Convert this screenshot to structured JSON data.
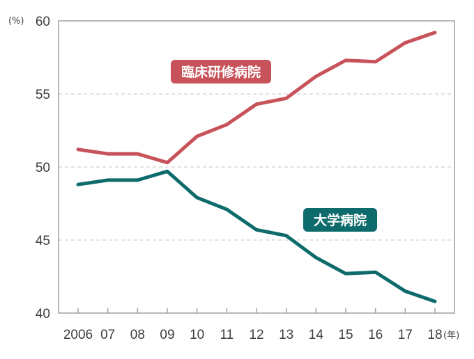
{
  "chart_data": {
    "type": "line",
    "title": "",
    "y_unit": "(%)",
    "x_unit": "(年)",
    "categories": [
      "2006",
      "07",
      "08",
      "09",
      "10",
      "11",
      "12",
      "13",
      "14",
      "15",
      "16",
      "17",
      "18"
    ],
    "series": [
      {
        "name": "臨床研修病院",
        "color": "#c8525a",
        "values": [
          51.2,
          50.9,
          50.9,
          50.3,
          52.1,
          52.9,
          54.3,
          54.7,
          56.2,
          57.3,
          57.2,
          58.5,
          59.2
        ]
      },
      {
        "name": "大学病院",
        "color": "#0e6b6b",
        "values": [
          48.8,
          49.1,
          49.1,
          49.7,
          47.9,
          47.1,
          45.7,
          45.3,
          43.8,
          42.7,
          42.8,
          41.5,
          40.8
        ]
      }
    ],
    "yticks": [
      40,
      45,
      50,
      55,
      60
    ],
    "ylim": [
      40,
      60
    ],
    "grid": "horizontal dashed"
  }
}
